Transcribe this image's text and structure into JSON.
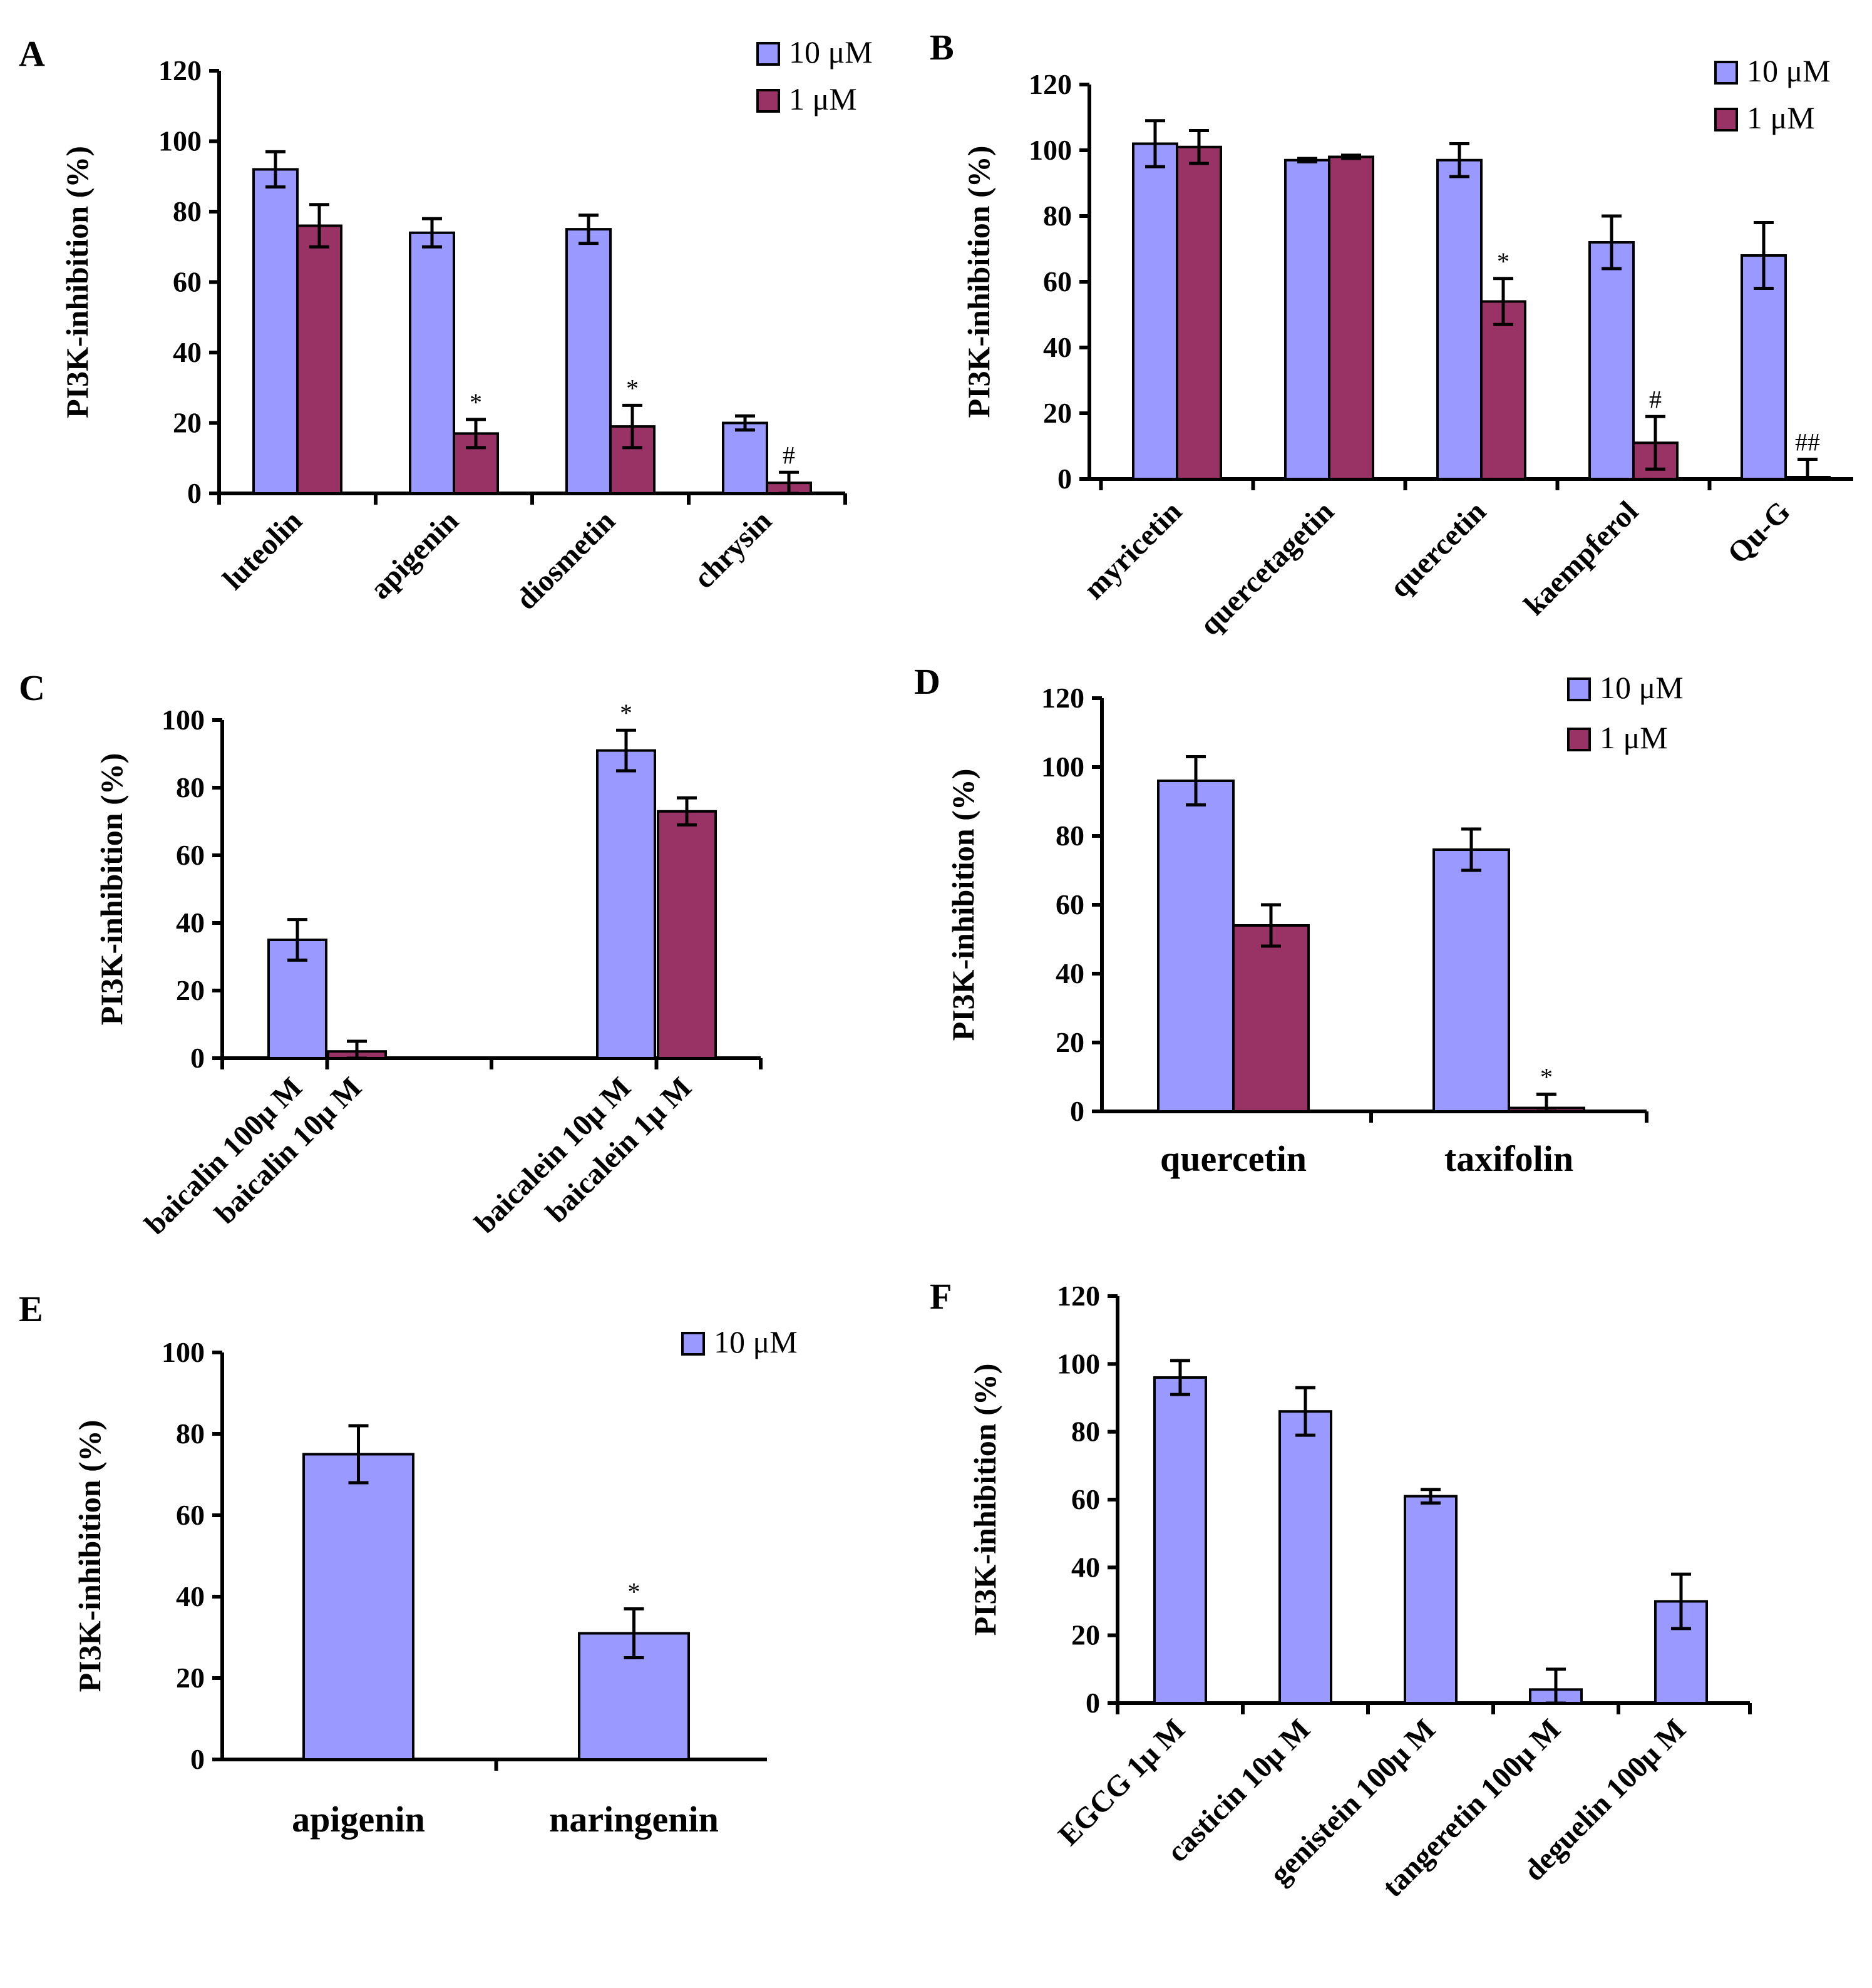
{
  "chart_data": [
    {
      "panel": "A",
      "type": "bar",
      "ylabel": "PI3K-inhibition (%)",
      "ylim": [
        0,
        120
      ],
      "yticks": [
        0,
        20,
        40,
        60,
        80,
        100,
        120
      ],
      "legend": [
        "10 μM",
        "1 μM"
      ],
      "categories": [
        "luteolin",
        "apigenin",
        "diosmetin",
        "chrysin"
      ],
      "series": [
        {
          "name": "10 μM",
          "color": "#9999ff",
          "values": [
            92,
            74,
            75,
            20
          ],
          "errors": [
            5,
            4,
            4,
            2
          ]
        },
        {
          "name": "1 μM",
          "color": "#993366",
          "values": [
            76,
            17,
            19,
            3
          ],
          "errors": [
            6,
            4,
            6,
            3
          ]
        }
      ],
      "annotations": [
        {
          "category": 1,
          "series": 1,
          "text": "*"
        },
        {
          "category": 2,
          "series": 1,
          "text": "*"
        },
        {
          "category": 3,
          "series": 1,
          "text": "#"
        }
      ]
    },
    {
      "panel": "B",
      "type": "bar",
      "ylabel": "PI3K-inhibition (%)",
      "ylim": [
        0,
        120
      ],
      "yticks": [
        0,
        20,
        40,
        60,
        80,
        100,
        120
      ],
      "legend": [
        "10 μM",
        "1 μM"
      ],
      "categories": [
        "myricetin",
        "quercetagetin",
        "quercetin",
        "kaempferol",
        "Qu-G"
      ],
      "series": [
        {
          "name": "10 μM",
          "color": "#9999ff",
          "values": [
            102,
            97,
            97,
            72,
            68
          ],
          "errors": [
            7,
            0.5,
            5,
            8,
            10
          ]
        },
        {
          "name": "1 μM",
          "color": "#993366",
          "values": [
            101,
            98,
            54,
            11,
            0
          ],
          "errors": [
            5,
            0.5,
            7,
            8,
            6
          ]
        }
      ],
      "annotations": [
        {
          "category": 2,
          "series": 1,
          "text": "*"
        },
        {
          "category": 3,
          "series": 1,
          "text": "#"
        },
        {
          "category": 4,
          "series": 1,
          "text": "##"
        }
      ]
    },
    {
      "panel": "C",
      "type": "bar",
      "ylabel": "PI3K-inhibition (%)",
      "ylim": [
        0,
        100
      ],
      "yticks": [
        0,
        20,
        40,
        60,
        80,
        100
      ],
      "categories": [
        "baicalin 100μ M",
        "baicalin 10μ M",
        "baicalein 10μ M",
        "baicalein 1μ M"
      ],
      "values": [
        35,
        2,
        91,
        73
      ],
      "errors": [
        6,
        3,
        6,
        4
      ],
      "colors": [
        "#9999ff",
        "#993366",
        "#9999ff",
        "#993366"
      ],
      "annotations": [
        {
          "category": 2,
          "text": "*"
        }
      ]
    },
    {
      "panel": "D",
      "type": "bar",
      "ylabel": "PI3K-inhibition (%)",
      "ylim": [
        0,
        120
      ],
      "yticks": [
        0,
        20,
        40,
        60,
        80,
        100,
        120
      ],
      "legend": [
        "10 μM",
        "1 μM"
      ],
      "categories": [
        "quercetin",
        "taxifolin"
      ],
      "series": [
        {
          "name": "10 μM",
          "color": "#9999ff",
          "values": [
            96,
            76
          ],
          "errors": [
            7,
            6
          ]
        },
        {
          "name": "1 μM",
          "color": "#993366",
          "values": [
            54,
            1
          ],
          "errors": [
            6,
            4
          ]
        }
      ],
      "annotations": [
        {
          "category": 1,
          "series": 1,
          "text": "*"
        }
      ]
    },
    {
      "panel": "E",
      "type": "bar",
      "ylabel": "PI3K-inhibition (%)",
      "ylim": [
        0,
        100
      ],
      "yticks": [
        0,
        20,
        40,
        60,
        80,
        100
      ],
      "legend": [
        "10 μM"
      ],
      "categories": [
        "apigenin",
        "naringenin"
      ],
      "series": [
        {
          "name": "10 μM",
          "color": "#9999ff",
          "values": [
            75,
            31
          ],
          "errors": [
            7,
            6
          ]
        }
      ],
      "annotations": [
        {
          "category": 1,
          "series": 0,
          "text": "*"
        }
      ]
    },
    {
      "panel": "F",
      "type": "bar",
      "ylabel": "PI3K-inhibition (%)",
      "ylim": [
        0,
        120
      ],
      "yticks": [
        0,
        20,
        40,
        60,
        80,
        100,
        120
      ],
      "categories": [
        "EGCG 1μ M",
        "casticin 10μ M",
        "genistein 100μ M",
        "tangeretin 100μ M",
        "deguelin 100μ M"
      ],
      "values": [
        96,
        86,
        61,
        4,
        30
      ],
      "errors": [
        5,
        7,
        2,
        6,
        8
      ],
      "colors": [
        "#9999ff",
        "#9999ff",
        "#9999ff",
        "#9999ff",
        "#9999ff"
      ]
    }
  ]
}
